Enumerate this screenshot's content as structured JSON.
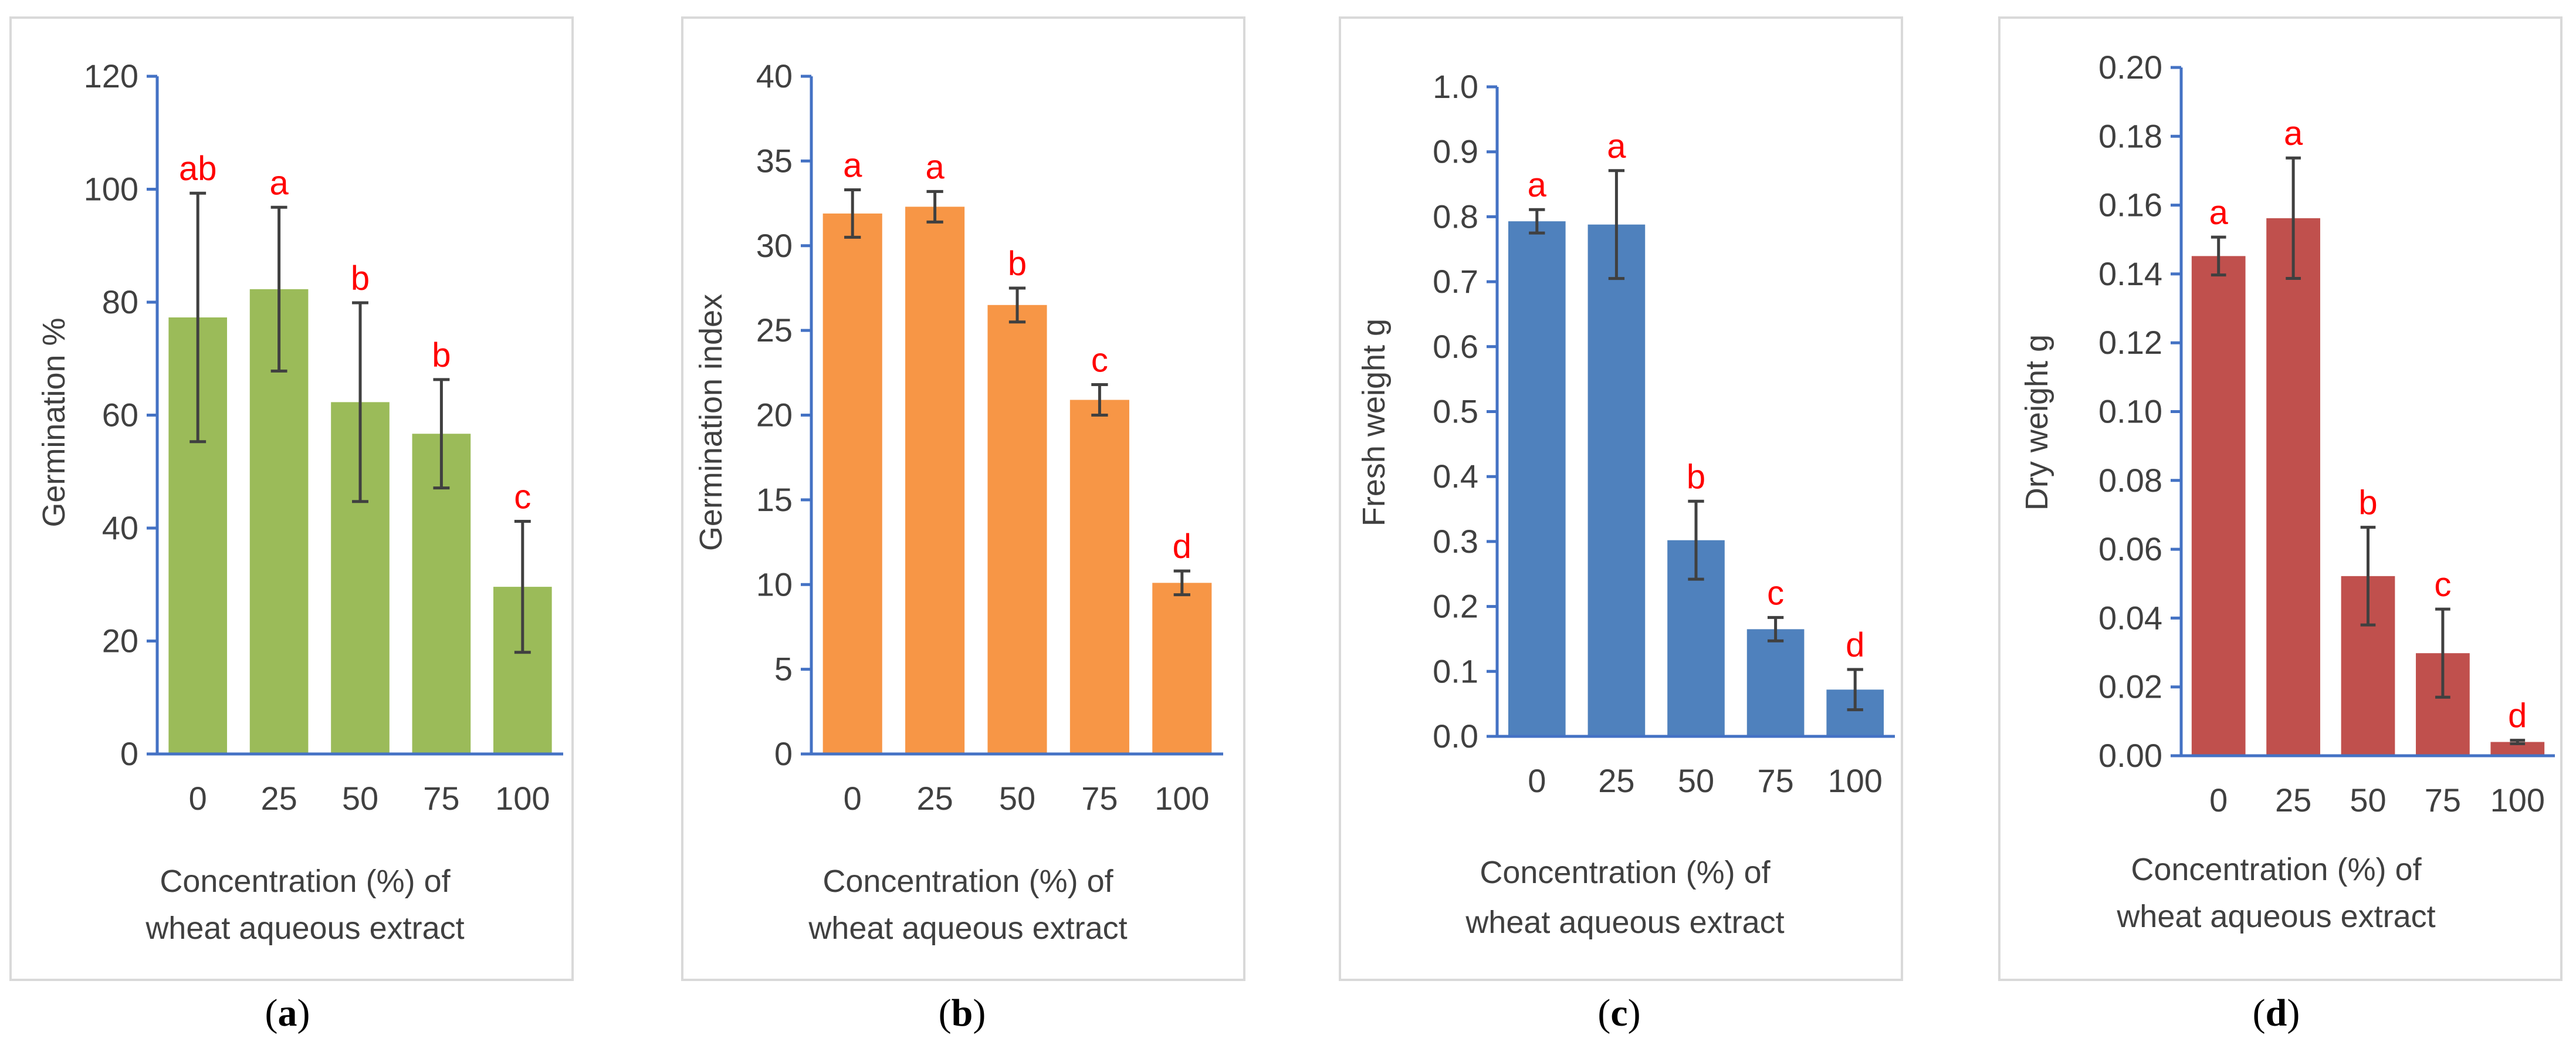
{
  "chart_data": [
    {
      "type": "bar",
      "panel_label": "a",
      "title": "",
      "xlabel": [
        "Concentration (%) of",
        "wheat aqueous extract"
      ],
      "ylabel": "Germination %",
      "categories": [
        "0",
        "25",
        "50",
        "75",
        "100"
      ],
      "values": [
        77.3,
        82.3,
        62.3,
        56.7,
        29.6
      ],
      "errors": [
        22.0,
        14.5,
        17.6,
        9.6,
        11.6
      ],
      "significance": [
        "ab",
        "a",
        "b",
        "b",
        "c"
      ],
      "ylim": [
        0,
        120
      ],
      "yticks": [
        0,
        20,
        40,
        60,
        80,
        100,
        120
      ],
      "ytick_labels": [
        "0",
        "20",
        "40",
        "60",
        "80",
        "100",
        "120"
      ],
      "color": "#9bbb59"
    },
    {
      "type": "bar",
      "panel_label": "b",
      "title": "",
      "xlabel": [
        "Concentration (%) of",
        "wheat aqueous extract"
      ],
      "ylabel": "Germination index",
      "categories": [
        "0",
        "25",
        "50",
        "75",
        "100"
      ],
      "values": [
        31.9,
        32.3,
        26.5,
        20.9,
        10.1
      ],
      "errors": [
        1.4,
        0.9,
        1.0,
        0.9,
        0.7
      ],
      "significance": [
        "a",
        "a",
        "b",
        "c",
        "d"
      ],
      "ylim": [
        0,
        40
      ],
      "yticks": [
        0,
        5,
        10,
        15,
        20,
        25,
        30,
        35,
        40
      ],
      "ytick_labels": [
        "0",
        "5",
        "10",
        "15",
        "20",
        "25",
        "30",
        "35",
        "40"
      ],
      "color": "#f79646"
    },
    {
      "type": "bar",
      "panel_label": "c",
      "title": "",
      "xlabel": [
        "Concentration (%) of",
        "wheat aqueous extract"
      ],
      "ylabel": "Fresh  weight g",
      "categories": [
        "0",
        "25",
        "50",
        "75",
        "100"
      ],
      "values": [
        0.793,
        0.788,
        0.302,
        0.165,
        0.072
      ],
      "errors": [
        0.018,
        0.083,
        0.06,
        0.018,
        0.031
      ],
      "significance": [
        "a",
        "a",
        "b",
        "c",
        "d"
      ],
      "ylim": [
        0,
        1.0
      ],
      "yticks": [
        0,
        0.1,
        0.2,
        0.3,
        0.4,
        0.5,
        0.6,
        0.7,
        0.8,
        0.9,
        1.0
      ],
      "ytick_labels": [
        "0.0",
        "0.1",
        "0.2",
        "0.3",
        "0.4",
        "0.5",
        "0.6",
        "0.7",
        "0.8",
        "0.9",
        "1.0"
      ],
      "color": "#4f81bd"
    },
    {
      "type": "bar",
      "panel_label": "d",
      "title": "",
      "xlabel": [
        "Concentration (%) of",
        "wheat aqueous extract"
      ],
      "ylabel": "Dry weight g",
      "categories": [
        "0",
        "25",
        "50",
        "75",
        "100"
      ],
      "values": [
        0.1452,
        0.1562,
        0.0522,
        0.0298,
        0.004
      ],
      "errors": [
        0.0055,
        0.0175,
        0.0142,
        0.0128,
        0.0005
      ],
      "significance": [
        "a",
        "a",
        "b",
        "c",
        "d"
      ],
      "ylim": [
        0,
        0.2
      ],
      "yticks": [
        0,
        0.02,
        0.04,
        0.06,
        0.08,
        0.1,
        0.12,
        0.14,
        0.16,
        0.18,
        0.2
      ],
      "ytick_labels": [
        "0.00",
        "0.02",
        "0.04",
        "0.06",
        "0.08",
        "0.10",
        "0.12",
        "0.14",
        "0.16",
        "0.18",
        "0.20"
      ],
      "color": "#c0504d"
    }
  ],
  "colors": {
    "axis": "#4472c4",
    "frame": "#d9d9d9",
    "error_bar": "#404040",
    "significance": "#ff0000"
  }
}
